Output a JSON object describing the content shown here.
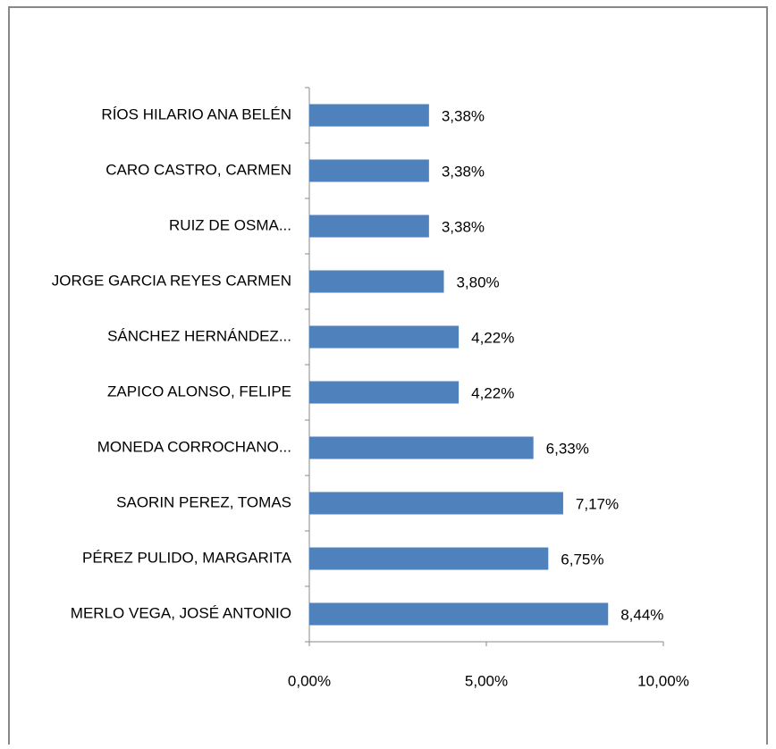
{
  "chart_data": {
    "type": "bar",
    "orientation": "horizontal",
    "categories": [
      "RÍOS HILARIO ANA BELÉN",
      "CARO CASTRO, CARMEN",
      "RUIZ DE OSMA...",
      "JORGE GARCIA REYES CARMEN",
      "SÁNCHEZ HERNÁNDEZ...",
      "ZAPICO ALONSO, FELIPE",
      "MONEDA CORROCHANO...",
      "SAORIN PEREZ, TOMAS",
      "PÉREZ PULIDO, MARGARITA",
      "MERLO VEGA, JOSÉ ANTONIO"
    ],
    "values": [
      3.38,
      3.38,
      3.38,
      3.8,
      4.22,
      4.22,
      6.33,
      7.17,
      6.75,
      8.44
    ],
    "value_labels": [
      "3,38%",
      "3,38%",
      "3,38%",
      "3,80%",
      "4,22%",
      "4,22%",
      "6,33%",
      "7,17%",
      "6,75%",
      "8,44%"
    ],
    "color": "#4f81bd",
    "xlim": [
      0,
      10
    ],
    "xticks": [
      {
        "value": 0,
        "label": "0,00%"
      },
      {
        "value": 5,
        "label": "5,00%"
      },
      {
        "value": 10,
        "label": "10,00%"
      }
    ]
  }
}
